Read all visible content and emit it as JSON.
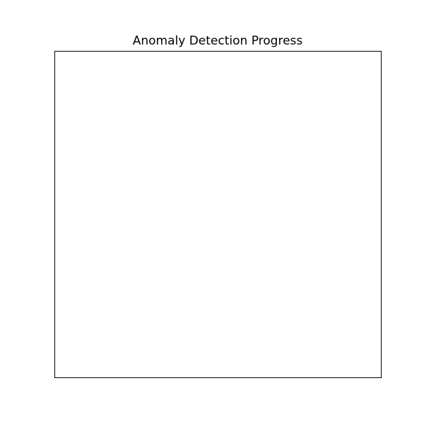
{
  "chart_data": {
    "type": "line",
    "title": "Anomaly Detection Progress",
    "xlabel": "",
    "ylabel": "",
    "series": [],
    "grid": false,
    "colors": {
      "background": "#ffffff",
      "axes_frame": "#000000",
      "title_text": "#000000"
    }
  }
}
